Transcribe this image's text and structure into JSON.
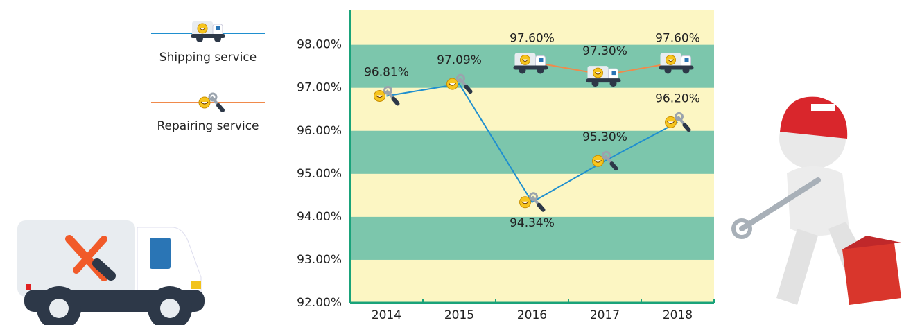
{
  "chart_data": {
    "type": "line",
    "categories": [
      "2014",
      "2015",
      "2016",
      "2017",
      "2018"
    ],
    "series": [
      {
        "name": "Shipping service",
        "color": "#1f8fcf",
        "values": [
          96.81,
          97.09,
          94.34,
          95.3,
          96.2
        ],
        "value_labels": [
          "96.81%",
          "97.09%",
          "94.34%",
          "95.30%",
          "96.20%"
        ]
      },
      {
        "name": "Repairing service",
        "color": "#f08a4b",
        "values": [
          null,
          null,
          97.6,
          97.3,
          97.6
        ],
        "value_labels": [
          null,
          null,
          "97.60%",
          "97.30%",
          "97.60%"
        ]
      }
    ],
    "ylim": [
      92,
      98.8
    ],
    "yticks": [
      {
        "value": 92,
        "label": "92.00%"
      },
      {
        "value": 93,
        "label": "93.00%"
      },
      {
        "value": 94,
        "label": "94.00%"
      },
      {
        "value": 95,
        "label": "95.00%"
      },
      {
        "value": 96,
        "label": "96.00%"
      },
      {
        "value": 97,
        "label": "97.00%"
      },
      {
        "value": 98,
        "label": "98.00%"
      }
    ],
    "band_colors": [
      "#fcf6c3",
      "#7cc6ac"
    ]
  }
}
